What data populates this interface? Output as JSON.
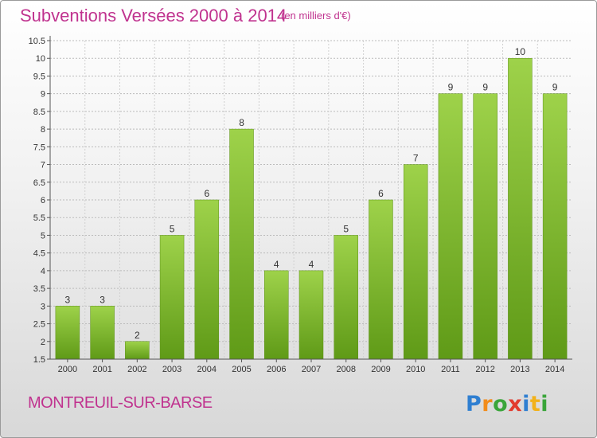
{
  "header": {
    "title": "Subventions Versées 2000 à 2014",
    "subtitle": "(en milliers d'€)"
  },
  "footer": {
    "commune": "MONTREUIL-SUR-BARSE",
    "logo_text": "Proxiti"
  },
  "colors": {
    "title": "#c0338f",
    "bar_light": "#9ed24a",
    "bar_dark": "#5f9a17",
    "axis": "#555555",
    "grid": "#bbbbbb"
  },
  "chart_data": {
    "type": "bar",
    "title": "Subventions Versées 2000 à 2014",
    "subtitle": "(en milliers d'€)",
    "xlabel": "",
    "ylabel": "",
    "categories": [
      "2000",
      "2001",
      "2002",
      "2003",
      "2004",
      "2005",
      "2006",
      "2007",
      "2008",
      "2009",
      "2010",
      "2011",
      "2012",
      "2013",
      "2014"
    ],
    "values": [
      3,
      3,
      2,
      5,
      6,
      8,
      4,
      4,
      5,
      6,
      7,
      9,
      9,
      10,
      9
    ],
    "data_labels": [
      "3",
      "3",
      "2",
      "5",
      "6",
      "8",
      "4",
      "4",
      "5",
      "6",
      "7",
      "9",
      "9",
      "10",
      "9"
    ],
    "ylim": [
      1.5,
      10.5
    ],
    "yticks": [
      "1.5",
      "2",
      "2.5",
      "3",
      "3.5",
      "4",
      "4.5",
      "5",
      "5.5",
      "6",
      "6.5",
      "7",
      "7.5",
      "8",
      "8.5",
      "9",
      "9.5",
      "10",
      "10.5"
    ],
    "grid": true,
    "legend": "none"
  }
}
